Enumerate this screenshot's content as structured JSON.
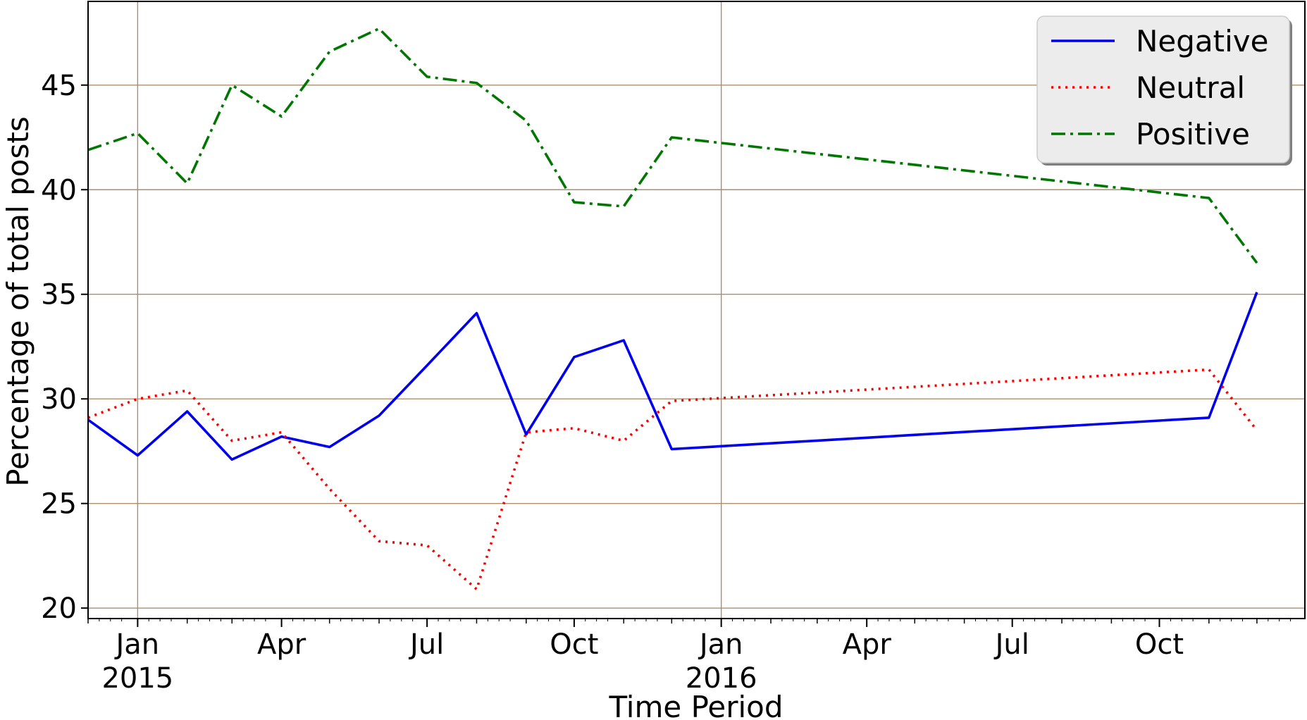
{
  "chart_data": {
    "type": "line",
    "title": "",
    "xlabel": "Time Period",
    "ylabel": "Percentage of total posts",
    "ylim": [
      19.5,
      49
    ],
    "xlim": [
      "2014-12-01",
      "2016-12-31"
    ],
    "grid": true,
    "legend_position": "top-right",
    "y_ticks": [
      "20",
      "25",
      "30",
      "35",
      "40",
      "45"
    ],
    "x_tick_labels": [
      {
        "date": "2015-01-01",
        "line1": "Jan",
        "line2": "2015"
      },
      {
        "date": "2015-04-01",
        "line1": "Apr",
        "line2": ""
      },
      {
        "date": "2015-07-01",
        "line1": "Jul",
        "line2": ""
      },
      {
        "date": "2015-10-01",
        "line1": "Oct",
        "line2": ""
      },
      {
        "date": "2016-01-01",
        "line1": "Jan",
        "line2": "2016"
      },
      {
        "date": "2016-04-01",
        "line1": "Apr",
        "line2": ""
      },
      {
        "date": "2016-07-01",
        "line1": "Jul",
        "line2": ""
      },
      {
        "date": "2016-10-01",
        "line1": "Oct",
        "line2": ""
      }
    ],
    "x": [
      "2014-12-01",
      "2015-01-01",
      "2015-02-01",
      "2015-03-01",
      "2015-04-01",
      "2015-05-01",
      "2015-06-01",
      "2015-07-01",
      "2015-08-01",
      "2015-09-01",
      "2015-10-01",
      "2015-11-01",
      "2015-12-01",
      "2016-11-01",
      "2016-12-01"
    ],
    "series": [
      {
        "name": "Negative",
        "color": "#0000ee",
        "style": "solid",
        "values": [
          29.0,
          27.3,
          29.4,
          27.1,
          28.2,
          27.7,
          29.2,
          31.6,
          34.1,
          28.3,
          32.0,
          32.8,
          27.6,
          29.1,
          35.1
        ]
      },
      {
        "name": "Neutral",
        "color": "#ff0000",
        "style": "dotted",
        "values": [
          29.1,
          30.0,
          30.4,
          28.0,
          28.4,
          25.7,
          23.2,
          23.0,
          20.9,
          28.4,
          28.6,
          28.0,
          29.9,
          31.4,
          28.5
        ]
      },
      {
        "name": "Positive",
        "color": "#007700",
        "style": "dashdot",
        "values": [
          41.9,
          42.7,
          40.3,
          45.0,
          43.5,
          46.6,
          47.7,
          45.4,
          45.1,
          43.3,
          39.4,
          39.2,
          42.5,
          39.6,
          36.5
        ]
      }
    ]
  }
}
